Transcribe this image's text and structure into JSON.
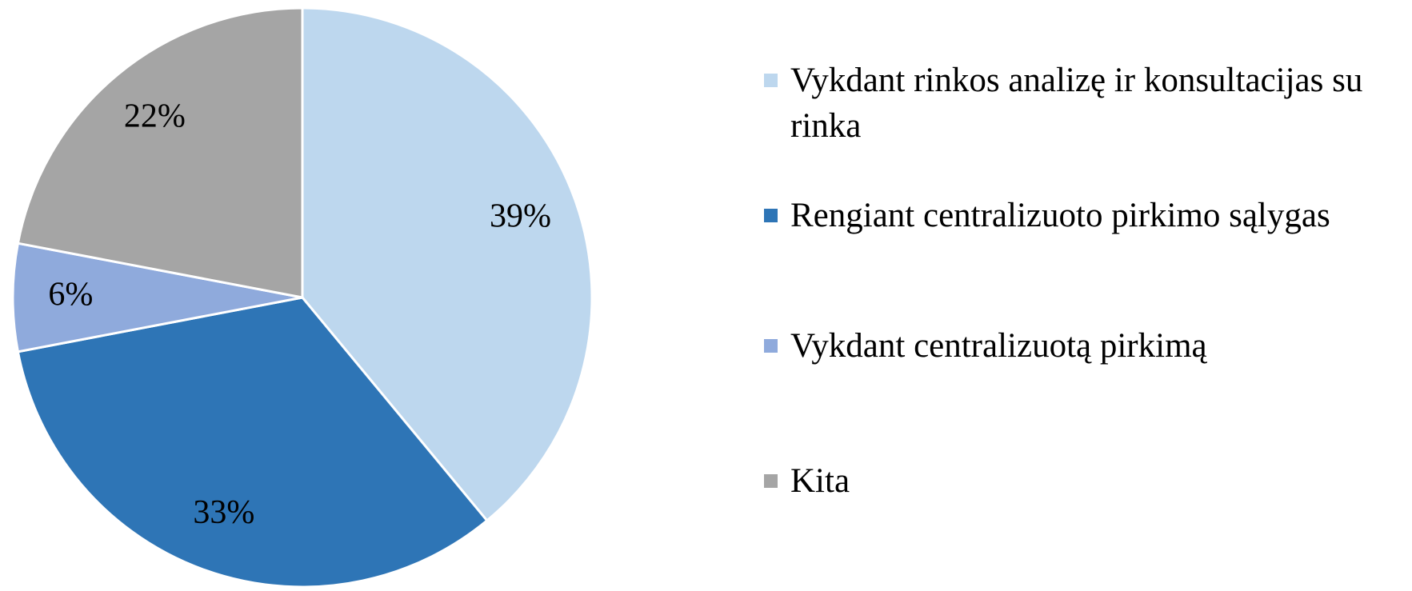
{
  "chart_data": {
    "type": "pie",
    "categories": [
      "Vykdant rinkos analizę ir konsultacijas su rinka",
      "Rengiant centralizuoto pirkimo sąlygas",
      "Vykdant centralizuotą pirkimą",
      "Kita"
    ],
    "values": [
      39,
      33,
      6,
      22
    ],
    "value_labels": [
      "39%",
      "33%",
      "6%",
      "22%"
    ],
    "colors": [
      "#bdd7ee",
      "#2e75b6",
      "#8faadc",
      "#a5a5a5"
    ],
    "legend": "right"
  }
}
